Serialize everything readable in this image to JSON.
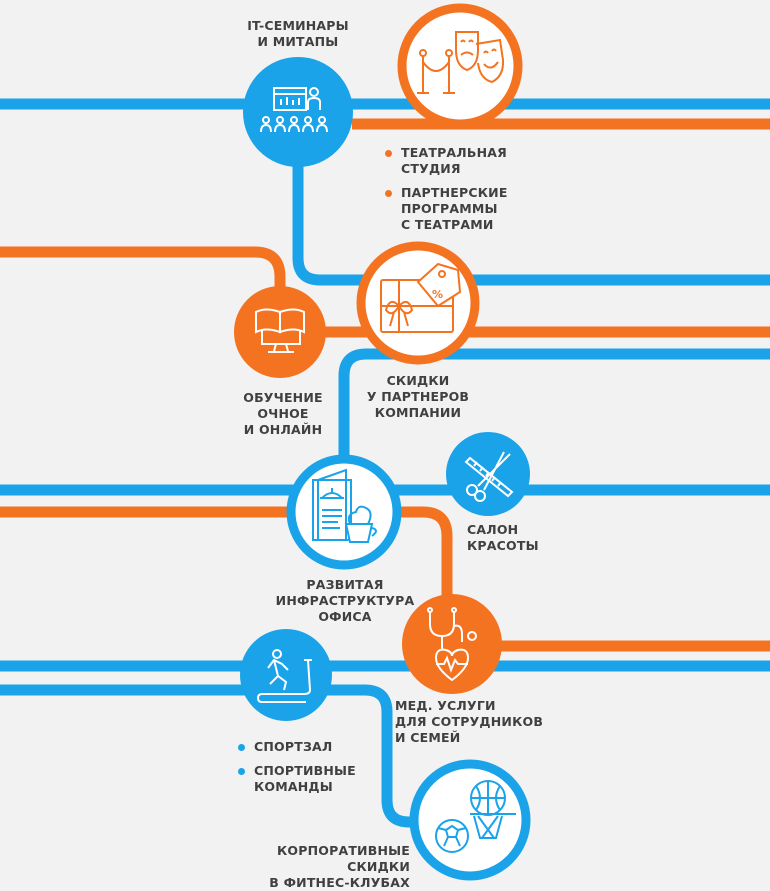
{
  "colors": {
    "blue": "#1aa3e8",
    "orange": "#f47321",
    "text": "#404040",
    "background": "#f2f2f2"
  },
  "stations": {
    "it_seminars": {
      "icon": "presentation-audience-icon",
      "label": [
        "IT-СЕМИНАРЫ",
        "И МИТАПЫ"
      ]
    },
    "theatre": {
      "icon": "theatre-masks-icon",
      "bullets": [
        [
          "ТЕАТРАЛЬНАЯ",
          "СТУДИЯ"
        ],
        [
          "ПАРТНЕРСКИЕ",
          "ПРОГРАММЫ",
          "С ТЕАТРАМИ"
        ]
      ]
    },
    "discounts": {
      "icon": "gift-card-icon",
      "label": [
        "СКИДКИ",
        "У ПАРТНЕРОВ",
        "КОМПАНИИ"
      ]
    },
    "education": {
      "icon": "book-monitor-icon",
      "label": [
        "ОБУЧЕНИЕ",
        "ОЧНОЕ",
        "И ОНЛАЙН"
      ]
    },
    "office": {
      "icon": "menu-coffee-icon",
      "label": [
        "РАЗВИТАЯ",
        "ИНФРАСТРУКТУРА",
        "ОФИСА"
      ]
    },
    "beauty_salon": {
      "icon": "scissors-comb-icon",
      "label": [
        "САЛОН",
        "КРАСОТЫ"
      ]
    },
    "medical": {
      "icon": "stethoscope-heart-icon",
      "label": [
        "МЕД. УСЛУГИ",
        "ДЛЯ СОТРУДНИКОВ",
        "И СЕМЕЙ"
      ]
    },
    "gym": {
      "icon": "treadmill-runner-icon",
      "bullets": [
        [
          "СПОРТЗАЛ"
        ],
        [
          "СПОРТИВНЫЕ",
          "КОМАНДЫ"
        ]
      ]
    },
    "fitness": {
      "icon": "balls-basketball-hoop-icon",
      "label": [
        "КОРПОРАТИВНЫЕ",
        "СКИДКИ",
        "В ФИТНЕС-КЛУБАХ"
      ]
    }
  }
}
